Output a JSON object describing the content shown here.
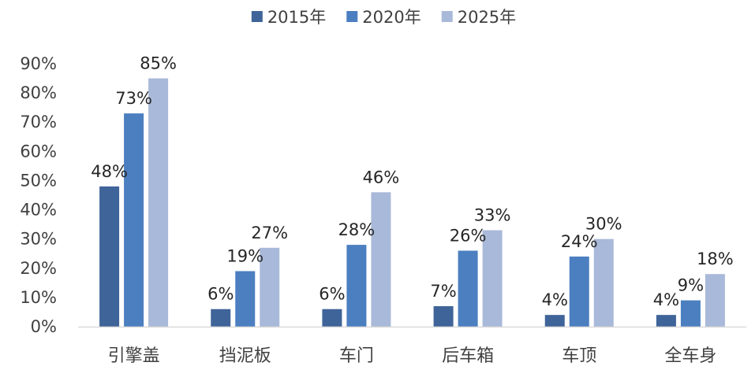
{
  "chart_data": {
    "type": "bar",
    "categories": [
      "引擎盖",
      "挡泥板",
      "车门",
      "后车箱",
      "车顶",
      "全车身"
    ],
    "series": [
      {
        "name": "2015年",
        "values": [
          48,
          6,
          6,
          7,
          4,
          4
        ],
        "labels": [
          "48%",
          "6%",
          "6%",
          "7%",
          "4%",
          "4%"
        ]
      },
      {
        "name": "2020年",
        "values": [
          73,
          19,
          28,
          26,
          24,
          9
        ],
        "labels": [
          "73%",
          "19%",
          "28%",
          "26%",
          "24%",
          "9%"
        ]
      },
      {
        "name": "2025年",
        "values": [
          85,
          27,
          46,
          33,
          30,
          18
        ],
        "labels": [
          "85%",
          "27%",
          "46%",
          "33%",
          "30%",
          "18%"
        ]
      }
    ],
    "ylim": [
      0,
      90
    ],
    "yticks": [
      "0%",
      "10%",
      "20%",
      "30%",
      "40%",
      "50%",
      "60%",
      "70%",
      "80%",
      "90%"
    ],
    "grid": false,
    "legend_position": "top-center"
  },
  "colors": {
    "series": [
      "#3f6499",
      "#4c7fc0",
      "#a9b9d9"
    ],
    "axis": "#d9d9d9"
  }
}
